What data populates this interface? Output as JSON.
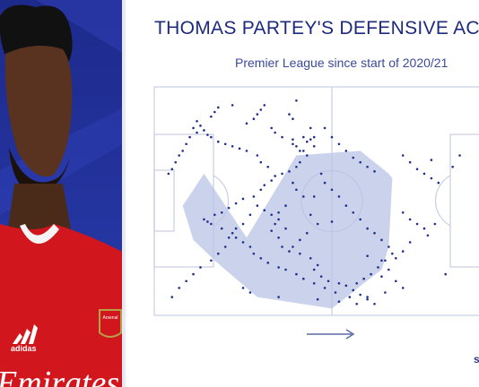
{
  "title": "THOMAS PARTEY'S DEFENSIVE ACTIONS",
  "subtitle": "Premier League since start of 2020/21",
  "player_shirt": {
    "brand_text": "adidas",
    "club_badge_text": "Arsenal",
    "sponsor_text": "Emirates"
  },
  "watermark": "s",
  "colors": {
    "title": "#1d2a7d",
    "points": "#1e2f8c",
    "hull_fill": "#b9c3e6",
    "pitch_lines": "#c9cde3",
    "background_panel": "#2330a0"
  },
  "chart_data": {
    "type": "scatter",
    "title": "THOMAS PARTEY'S DEFENSIVE ACTIONS",
    "subtitle": "Premier League since start of 2020/21",
    "xlabel": "",
    "ylabel": "",
    "xlim": [
      0,
      100
    ],
    "ylim": [
      0,
      100
    ],
    "grid": false,
    "attack_direction": "left-to-right",
    "coordinates": "pitch length 0-100 (own goal to opponent goal), width 0-100 (top touchline to bottom touchline)",
    "hull": [
      [
        26,
        66
      ],
      [
        40,
        30
      ],
      [
        58,
        28
      ],
      [
        66,
        38
      ],
      [
        67,
        40
      ],
      [
        66,
        70
      ],
      [
        64,
        80
      ],
      [
        59,
        86
      ],
      [
        50,
        97
      ],
      [
        29,
        92
      ],
      [
        17,
        76
      ],
      [
        11,
        67
      ],
      [
        8,
        52
      ],
      [
        14,
        38
      ]
    ],
    "points": [
      [
        40,
        6
      ],
      [
        40,
        26
      ],
      [
        47,
        38
      ],
      [
        45,
        48
      ],
      [
        50,
        59
      ],
      [
        60,
        74
      ],
      [
        64,
        76
      ],
      [
        78,
        32
      ],
      [
        82,
        82
      ],
      [
        79,
        60
      ],
      [
        39,
        23
      ],
      [
        39,
        25
      ],
      [
        41,
        28
      ],
      [
        42,
        22
      ],
      [
        43,
        24
      ],
      [
        44,
        23
      ],
      [
        45,
        26
      ],
      [
        44,
        18
      ],
      [
        45,
        22
      ],
      [
        42,
        28
      ],
      [
        43,
        30
      ],
      [
        41,
        33
      ],
      [
        40,
        35
      ],
      [
        38,
        37
      ],
      [
        39,
        42
      ],
      [
        40,
        45
      ],
      [
        42,
        48
      ],
      [
        37,
        52
      ],
      [
        35,
        55
      ],
      [
        34,
        60
      ],
      [
        33,
        63
      ],
      [
        35,
        66
      ],
      [
        36,
        70
      ],
      [
        38,
        72
      ],
      [
        41,
        73
      ],
      [
        44,
        75
      ],
      [
        46,
        78
      ],
      [
        45,
        80
      ],
      [
        47,
        83
      ],
      [
        49,
        85
      ],
      [
        52,
        86
      ],
      [
        54,
        87
      ],
      [
        56,
        89
      ],
      [
        58,
        91
      ],
      [
        60,
        93
      ],
      [
        62,
        95
      ],
      [
        55,
        92
      ],
      [
        51,
        90
      ],
      [
        48,
        88
      ],
      [
        45,
        86
      ],
      [
        42,
        84
      ],
      [
        40,
        82
      ],
      [
        37,
        80
      ],
      [
        35,
        79
      ],
      [
        32,
        77
      ],
      [
        30,
        75
      ],
      [
        28,
        73
      ],
      [
        27,
        70
      ],
      [
        25,
        68
      ],
      [
        23,
        66
      ],
      [
        22,
        64
      ],
      [
        19,
        62
      ],
      [
        16,
        60
      ],
      [
        15,
        59
      ],
      [
        14,
        58
      ],
      [
        17,
        56
      ],
      [
        19,
        55
      ],
      [
        21,
        53
      ],
      [
        23,
        51
      ],
      [
        25,
        49
      ],
      [
        28,
        48
      ],
      [
        30,
        45
      ],
      [
        31,
        43
      ],
      [
        33,
        41
      ],
      [
        34,
        39
      ],
      [
        36,
        38
      ],
      [
        32,
        35
      ],
      [
        30,
        33
      ],
      [
        29,
        30
      ],
      [
        26,
        28
      ],
      [
        24,
        27
      ],
      [
        22,
        26
      ],
      [
        20,
        25
      ],
      [
        18,
        24
      ],
      [
        16,
        22
      ],
      [
        15,
        21
      ],
      [
        14,
        19
      ],
      [
        13,
        17
      ],
      [
        12,
        15
      ],
      [
        11,
        18
      ],
      [
        12,
        20
      ],
      [
        10,
        22
      ],
      [
        9,
        25
      ],
      [
        8,
        28
      ],
      [
        7,
        30
      ],
      [
        6,
        33
      ],
      [
        5,
        36
      ],
      [
        4,
        38
      ],
      [
        18,
        9
      ],
      [
        17,
        11
      ],
      [
        16,
        13
      ],
      [
        22,
        8
      ],
      [
        26,
        16
      ],
      [
        28,
        14
      ],
      [
        29,
        12
      ],
      [
        30,
        10
      ],
      [
        31,
        8
      ],
      [
        33,
        18
      ],
      [
        34,
        20
      ],
      [
        36,
        22
      ],
      [
        38,
        12
      ],
      [
        39,
        14
      ],
      [
        48,
        18
      ],
      [
        50,
        22
      ],
      [
        52,
        25
      ],
      [
        54,
        28
      ],
      [
        56,
        31
      ],
      [
        58,
        33
      ],
      [
        60,
        35
      ],
      [
        62,
        37
      ],
      [
        48,
        42
      ],
      [
        50,
        45
      ],
      [
        52,
        48
      ],
      [
        54,
        52
      ],
      [
        56,
        55
      ],
      [
        58,
        58
      ],
      [
        60,
        62
      ],
      [
        62,
        64
      ],
      [
        64,
        67
      ],
      [
        66,
        70
      ],
      [
        67,
        73
      ],
      [
        65,
        76
      ],
      [
        63,
        79
      ],
      [
        61,
        82
      ],
      [
        59,
        84
      ],
      [
        57,
        86
      ],
      [
        70,
        30
      ],
      [
        72,
        33
      ],
      [
        74,
        36
      ],
      [
        76,
        38
      ],
      [
        78,
        40
      ],
      [
        80,
        42
      ],
      [
        84,
        35
      ],
      [
        86,
        30
      ],
      [
        70,
        55
      ],
      [
        72,
        58
      ],
      [
        74,
        60
      ],
      [
        76,
        62
      ],
      [
        77,
        65
      ],
      [
        72,
        68
      ],
      [
        70,
        72
      ],
      [
        68,
        75
      ],
      [
        66,
        80
      ],
      [
        64,
        83
      ],
      [
        68,
        85
      ],
      [
        70,
        88
      ],
      [
        65,
        90
      ],
      [
        60,
        92
      ],
      [
        44,
        56
      ],
      [
        46,
        60
      ],
      [
        43,
        64
      ],
      [
        41,
        67
      ],
      [
        39,
        70
      ],
      [
        37,
        62
      ],
      [
        35,
        58
      ],
      [
        33,
        56
      ],
      [
        31,
        54
      ],
      [
        29,
        52
      ],
      [
        27,
        56
      ],
      [
        25,
        60
      ],
      [
        23,
        62
      ],
      [
        21,
        66
      ],
      [
        20,
        70
      ],
      [
        18,
        73
      ],
      [
        16,
        76
      ],
      [
        13,
        79
      ],
      [
        11,
        82
      ],
      [
        9,
        85
      ],
      [
        7,
        88
      ],
      [
        5,
        92
      ],
      [
        25,
        88
      ],
      [
        27,
        90
      ],
      [
        35,
        92
      ],
      [
        46,
        93
      ],
      [
        52,
        94
      ],
      [
        57,
        95
      ]
    ]
  }
}
